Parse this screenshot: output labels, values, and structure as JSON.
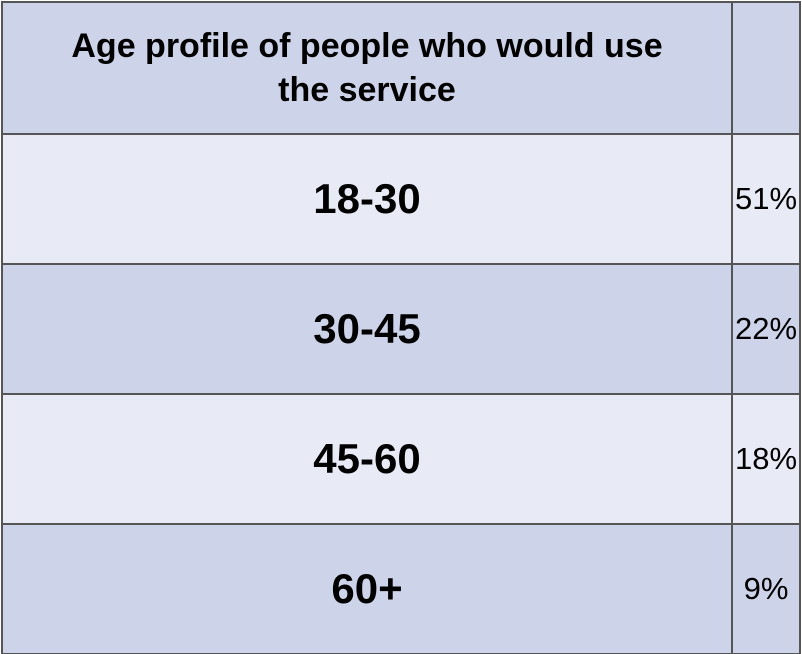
{
  "table": {
    "header": {
      "title": "Age profile of people who would use the service"
    },
    "rows": [
      [
        "18-30",
        "51%"
      ],
      [
        "30-45",
        "22%"
      ],
      [
        "45-60",
        "18%"
      ],
      [
        "60+",
        "9%"
      ]
    ]
  }
}
